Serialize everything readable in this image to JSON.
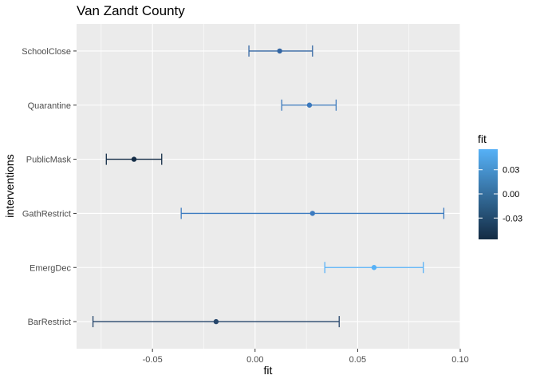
{
  "chart_data": {
    "type": "scatter",
    "title": "Van Zandt County",
    "xlabel": "fit",
    "ylabel": "interventions",
    "xlim": [
      -0.087,
      0.1
    ],
    "xticks": [
      -0.05,
      0.0,
      0.05,
      0.1
    ],
    "xtick_labels": [
      "-0.05",
      "0.00",
      "0.05",
      "0.10"
    ],
    "categories": [
      "SchoolClose",
      "Quarantine",
      "PublicMask",
      "GathRestrict",
      "EmergDec",
      "BarRestrict"
    ],
    "points": [
      {
        "category": "SchoolClose",
        "fit": 0.012,
        "lower": -0.003,
        "upper": 0.028,
        "color": "#3366a3"
      },
      {
        "category": "Quarantine",
        "fit": 0.0265,
        "lower": 0.013,
        "upper": 0.0395,
        "color": "#3b79bd"
      },
      {
        "category": "PublicMask",
        "fit": -0.059,
        "lower": -0.0725,
        "upper": -0.0455,
        "color": "#142d47"
      },
      {
        "category": "GathRestrict",
        "fit": 0.028,
        "lower": -0.036,
        "upper": 0.092,
        "color": "#3c7bc0"
      },
      {
        "category": "EmergDec",
        "fit": 0.058,
        "lower": 0.034,
        "upper": 0.082,
        "color": "#56b1f7"
      },
      {
        "category": "BarRestrict",
        "fit": -0.019,
        "lower": -0.079,
        "upper": 0.041,
        "color": "#26466b"
      }
    ],
    "grid": true,
    "legend": {
      "title": "fit",
      "placement": "right",
      "tick_labels": [
        "0.03",
        "0.00",
        "-0.03"
      ],
      "tick_values": [
        0.03,
        0.0,
        -0.03
      ],
      "range": [
        -0.0565,
        0.0555
      ],
      "low_color": "#132b43",
      "high_color": "#56b1f7"
    },
    "panel_background": "#ebebeb",
    "grid_color": "#ffffff"
  }
}
